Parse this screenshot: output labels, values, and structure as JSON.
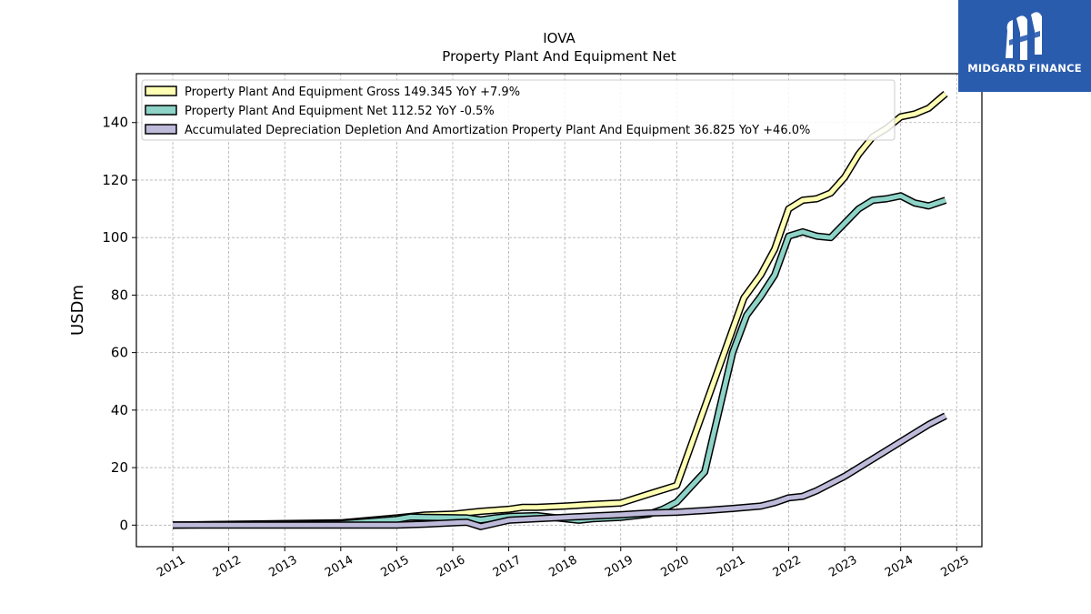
{
  "title": "IOVA",
  "subtitle": "Property Plant And Equipment Net",
  "brand": {
    "name": "MIDGARD FINANCE",
    "color": "#2a5cae"
  },
  "chart_data": {
    "type": "line",
    "ylabel": "USDm",
    "xlim": [
      2010.35,
      2025.45
    ],
    "ylim": [
      -7.5,
      157
    ],
    "grid": true,
    "legend_position": "top-left",
    "x_ticks": [
      2011,
      2012,
      2013,
      2014,
      2015,
      2016,
      2017,
      2018,
      2019,
      2020,
      2021,
      2022,
      2023,
      2024,
      2025
    ],
    "y_ticks": [
      0,
      20,
      40,
      60,
      80,
      100,
      120,
      140
    ],
    "series": [
      {
        "name": "Property Plant And Equipment Gross",
        "legend_label": "Property Plant And Equipment Gross  149.345 YoY +7.9%",
        "color": "#ffffb3",
        "points": [
          [
            2011.0,
            0
          ],
          [
            2014.0,
            0.8
          ],
          [
            2015.0,
            2.5
          ],
          [
            2015.5,
            3.5
          ],
          [
            2016.0,
            3.8
          ],
          [
            2016.5,
            4.8
          ],
          [
            2017.0,
            5.5
          ],
          [
            2017.25,
            6.2
          ],
          [
            2017.5,
            6.2
          ],
          [
            2018.0,
            6.6
          ],
          [
            2018.5,
            7.2
          ],
          [
            2019.0,
            7.7
          ],
          [
            2019.5,
            10.8
          ],
          [
            2020.0,
            13.8
          ],
          [
            2021.2,
            79
          ],
          [
            2021.5,
            87
          ],
          [
            2021.75,
            96
          ],
          [
            2022.0,
            110
          ],
          [
            2022.25,
            113
          ],
          [
            2022.5,
            113.5
          ],
          [
            2022.75,
            115.5
          ],
          [
            2023.0,
            121
          ],
          [
            2023.25,
            129
          ],
          [
            2023.5,
            135
          ],
          [
            2023.75,
            138
          ],
          [
            2024.0,
            142
          ],
          [
            2024.25,
            143
          ],
          [
            2024.5,
            145
          ],
          [
            2024.8,
            150
          ]
        ]
      },
      {
        "name": "Property Plant And Equipment Net",
        "legend_label": "Property Plant And Equipment Net  112.52 YoY -0.5%",
        "color": "#8dd3c7",
        "points": [
          [
            2011.0,
            0
          ],
          [
            2014.0,
            0.5
          ],
          [
            2015.0,
            2.0
          ],
          [
            2015.25,
            2.8
          ],
          [
            2015.5,
            2.7
          ],
          [
            2016.0,
            2.6
          ],
          [
            2016.25,
            2.5
          ],
          [
            2016.5,
            1.8
          ],
          [
            2016.75,
            2.5
          ],
          [
            2017.0,
            3.0
          ],
          [
            2017.5,
            3.3
          ],
          [
            2018.0,
            2.2
          ],
          [
            2018.25,
            1.7
          ],
          [
            2018.5,
            2.2
          ],
          [
            2019.0,
            2.7
          ],
          [
            2019.5,
            3.8
          ],
          [
            2019.75,
            5.5
          ],
          [
            2020.0,
            8.0
          ],
          [
            2020.5,
            18.5
          ],
          [
            2021.0,
            60
          ],
          [
            2021.25,
            73
          ],
          [
            2021.5,
            79.5
          ],
          [
            2021.75,
            87
          ],
          [
            2022.0,
            100.5
          ],
          [
            2022.25,
            102
          ],
          [
            2022.5,
            100.5
          ],
          [
            2022.75,
            100
          ],
          [
            2023.0,
            105
          ],
          [
            2023.25,
            110
          ],
          [
            2023.5,
            113
          ],
          [
            2023.75,
            113.5
          ],
          [
            2024.0,
            114.5
          ],
          [
            2024.25,
            112
          ],
          [
            2024.5,
            111
          ],
          [
            2024.8,
            113
          ]
        ]
      },
      {
        "name": "Accumulated Depreciation Depletion And Amortization Property Plant And Equipment",
        "legend_label": "Accumulated Depreciation Depletion And Amortization Property Plant And Equipment  36.825 YoY +46.0%",
        "color": "#bebada",
        "points": [
          [
            2011.0,
            0
          ],
          [
            2014.0,
            0
          ],
          [
            2015.0,
            0
          ],
          [
            2015.5,
            0.3
          ],
          [
            2016.0,
            0.8
          ],
          [
            2016.25,
            1.0
          ],
          [
            2016.5,
            -0.5
          ],
          [
            2017.0,
            1.7
          ],
          [
            2017.5,
            2.2
          ],
          [
            2018.0,
            2.7
          ],
          [
            2018.5,
            3.2
          ],
          [
            2019.0,
            3.6
          ],
          [
            2019.5,
            4.2
          ],
          [
            2020.0,
            4.5
          ],
          [
            2020.5,
            5.1
          ],
          [
            2021.0,
            5.8
          ],
          [
            2021.5,
            6.6
          ],
          [
            2021.75,
            7.8
          ],
          [
            2022.0,
            9.5
          ],
          [
            2022.25,
            10
          ],
          [
            2022.5,
            12
          ],
          [
            2022.75,
            14.5
          ],
          [
            2023.0,
            17
          ],
          [
            2023.25,
            20
          ],
          [
            2023.5,
            23
          ],
          [
            2023.75,
            26
          ],
          [
            2024.0,
            29
          ],
          [
            2024.25,
            32
          ],
          [
            2024.5,
            35
          ],
          [
            2024.8,
            38
          ]
        ]
      }
    ]
  }
}
